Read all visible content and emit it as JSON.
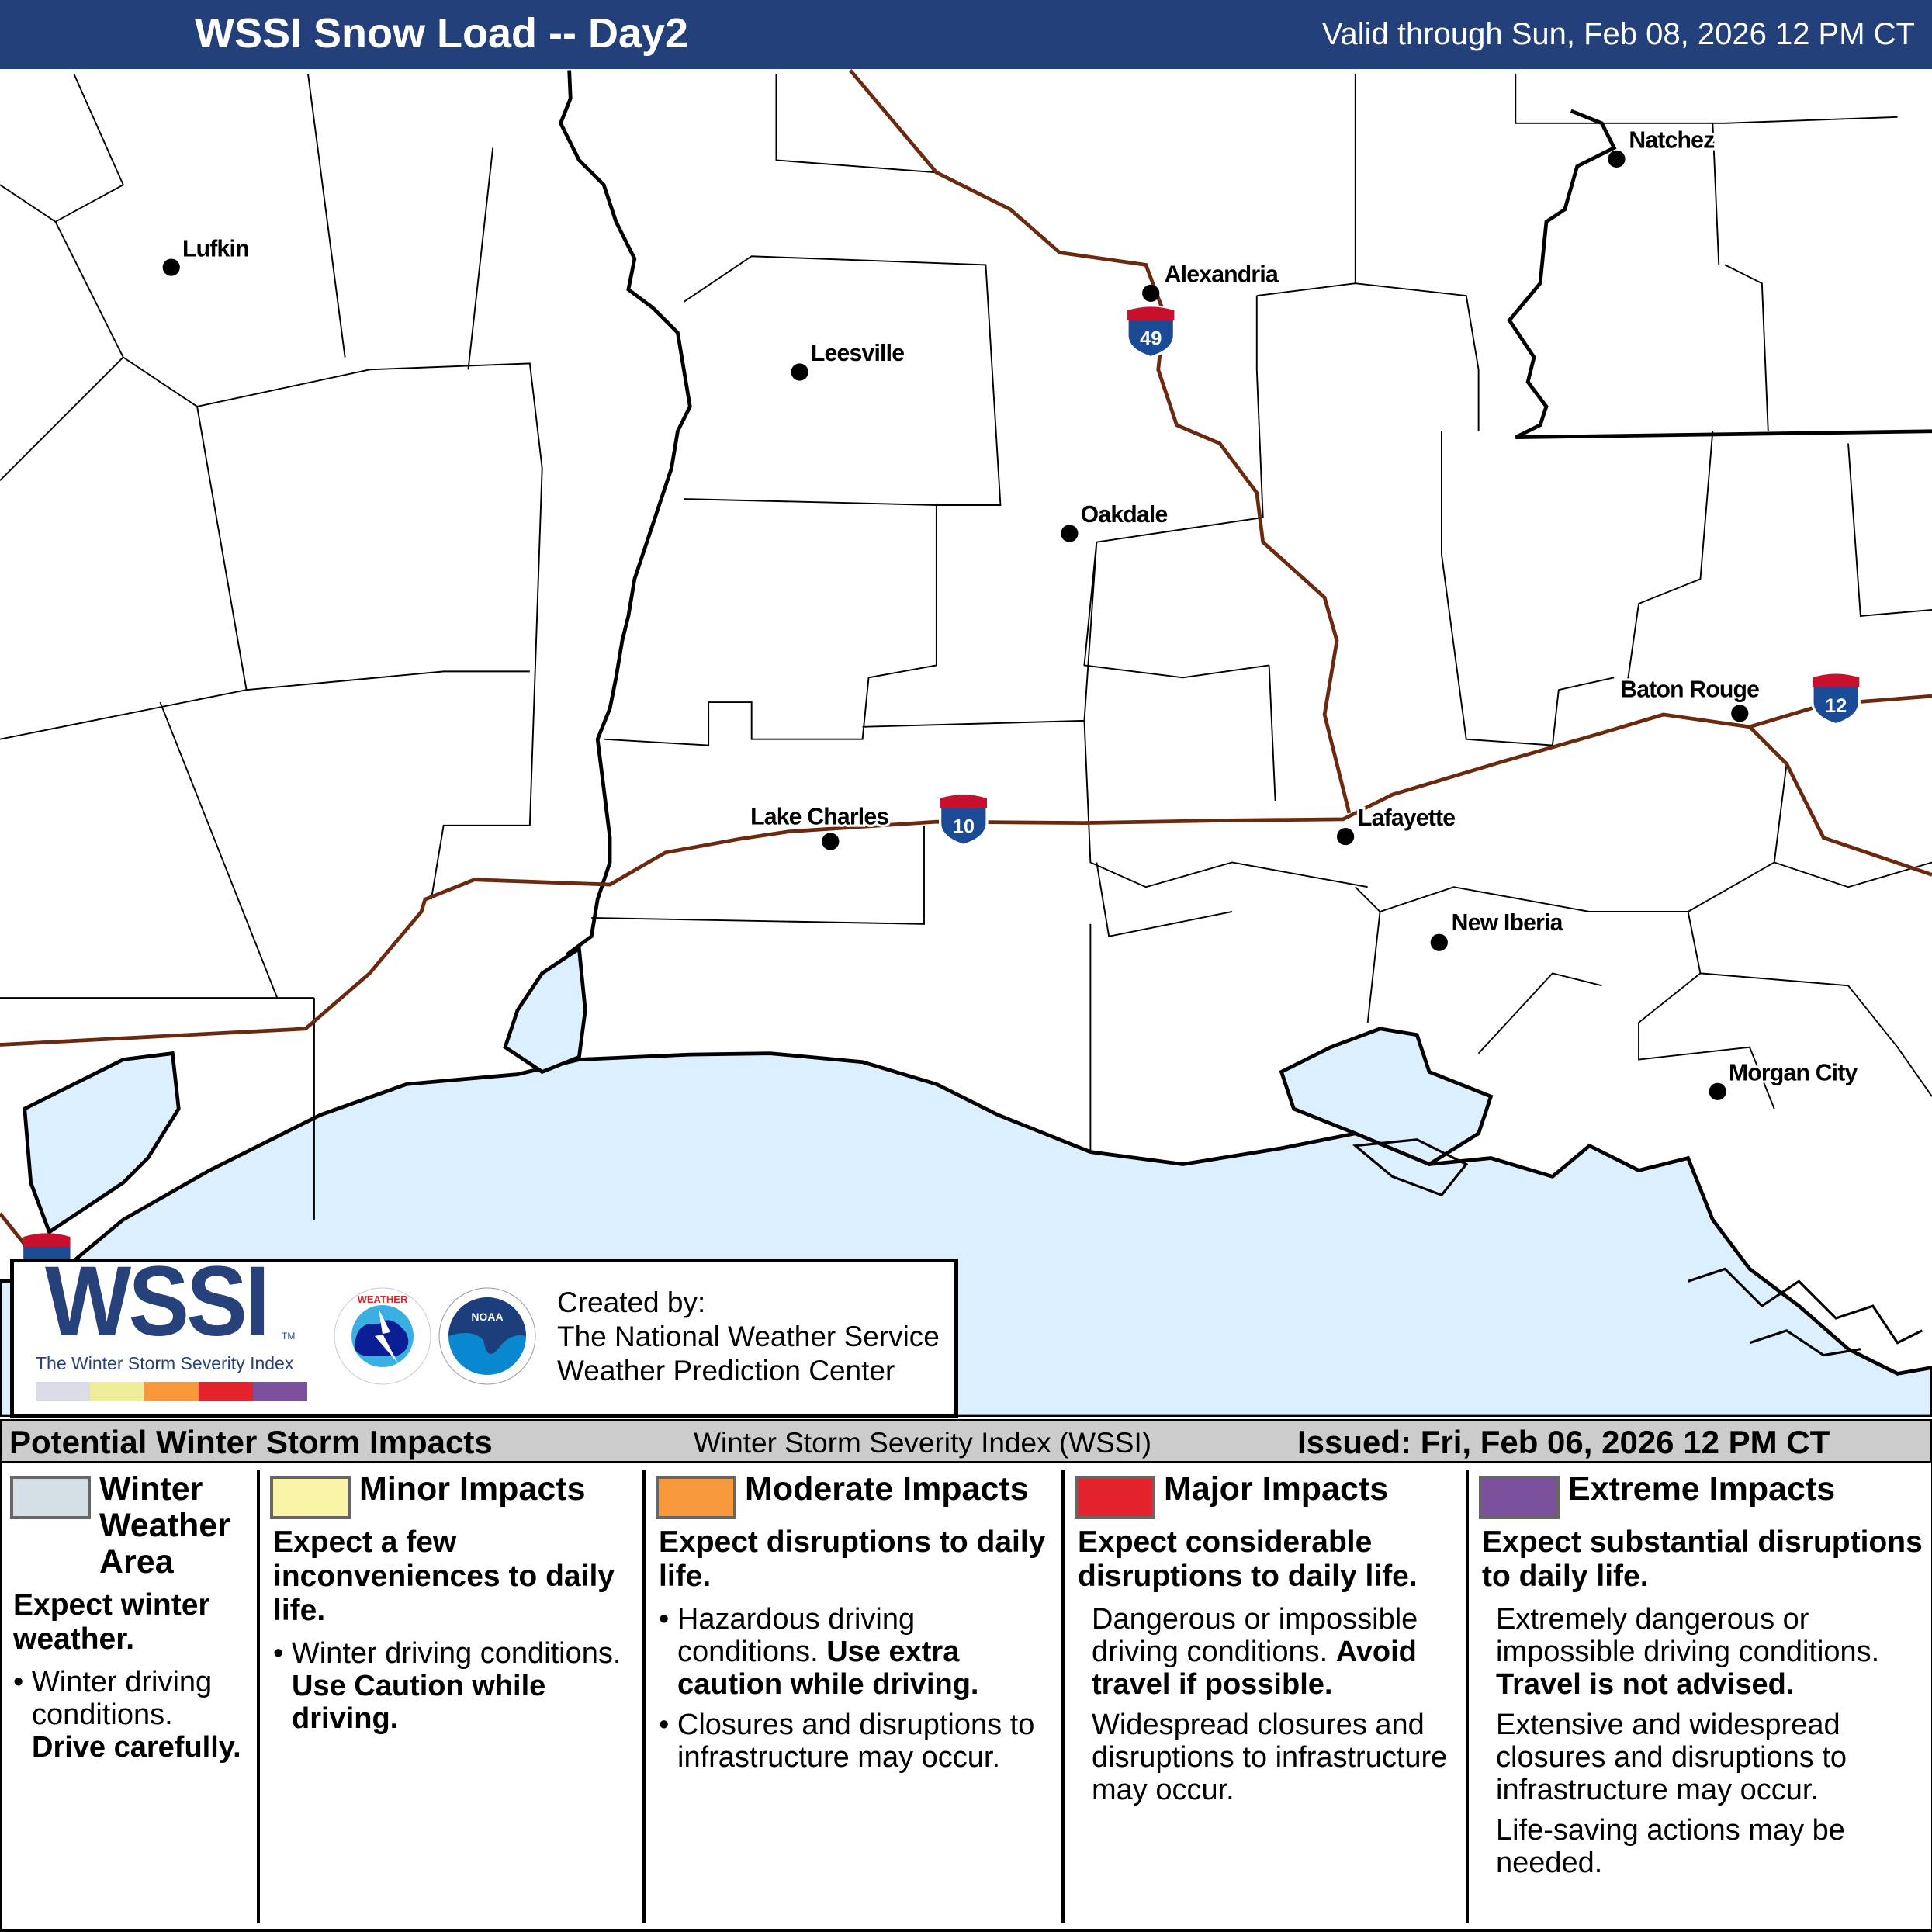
{
  "header": {
    "title": "WSSI Snow Load -- Day2",
    "valid": "Valid through Sun, Feb 08, 2026 12 PM CT",
    "color": "#24407a"
  },
  "map": {
    "water_color": "#dcefff",
    "interstate_color": "#6b2a10",
    "cities": [
      {
        "name": "Lufkin"
      },
      {
        "name": "Leesville"
      },
      {
        "name": "Alexandria"
      },
      {
        "name": "Natchez"
      },
      {
        "name": "Oakdale"
      },
      {
        "name": "Baton Rouge"
      },
      {
        "name": "Lake Charles"
      },
      {
        "name": "Lafayette"
      },
      {
        "name": "New Iberia"
      },
      {
        "name": "Morgan City"
      }
    ],
    "shields": [
      {
        "number": "49"
      },
      {
        "number": "10"
      },
      {
        "number": "12"
      }
    ]
  },
  "logo": {
    "wssi": "WSSI",
    "tm": "TM",
    "subtitle": "The Winter Storm Severity Index",
    "nws": "NATIONAL WEATHER SERVICE",
    "noaa": "NOAA",
    "colorbar": [
      "#dcdbe8",
      "#eeee99",
      "#f7983a",
      "#e3222b",
      "#7b519e"
    ],
    "credit_1": "Created by:",
    "credit_2": "The National Weather Service",
    "credit_3": "Weather Prediction Center"
  },
  "legend": {
    "title": "Potential Winter Storm Impacts",
    "center": "Winter Storm Severity Index (WSSI)",
    "issued": "Issued: Fri, Feb 06, 2026 12 PM CT",
    "columns": [
      {
        "label": "Winter Weather Area",
        "color": "#d4dfe6",
        "desc": "Expect winter weather.",
        "b1": "Winter driving conditions.",
        "b1_bold": "Drive carefully."
      },
      {
        "label": "Minor Impacts",
        "color": "#f9f4a6",
        "desc": "Expect a few inconveniences to daily life.",
        "b1": "Winter driving conditions.",
        "b1_bold": "Use Caution while driving."
      },
      {
        "label": "Moderate Impacts",
        "color": "#f7983a",
        "desc": "Expect disruptions to daily life.",
        "b1": "Hazardous driving conditions.",
        "b1_bold": "Use extra caution while driving.",
        "b2": "Closures and disruptions to infrastructure may occur."
      },
      {
        "label": "Major Impacts",
        "color": "#e3222b",
        "desc": "Expect considerable disruptions to daily life.",
        "b1": "Dangerous or impossible driving conditions.",
        "b1_bold": "Avoid travel if possible.",
        "b2": "Widespread closures and disruptions to infrastructure may occur."
      },
      {
        "label": "Extreme Impacts",
        "color": "#7b519e",
        "desc": "Expect substantial disruptions to daily life.",
        "b1": "Extremely dangerous or impossible driving conditions.",
        "b1_bold": "Travel is not advised.",
        "b2": "Extensive and widespread closures and disruptions to infrastructure may occur.",
        "b3": "Life-saving actions may be needed."
      }
    ]
  }
}
